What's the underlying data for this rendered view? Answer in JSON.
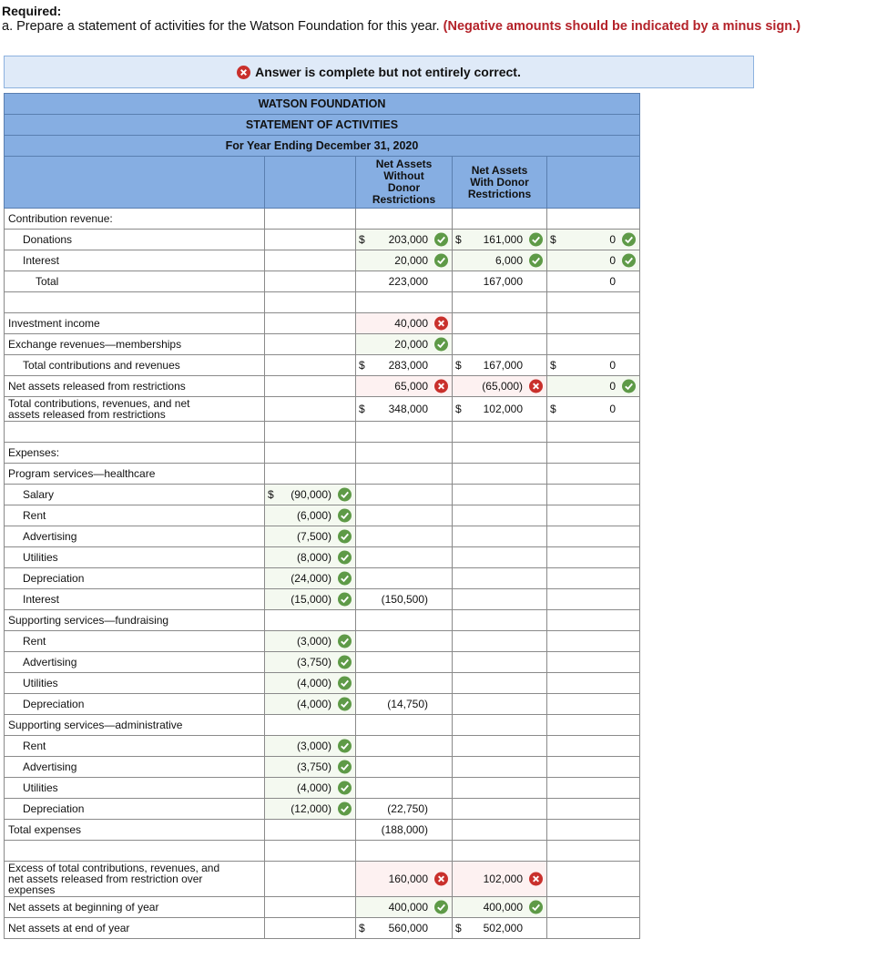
{
  "required": "Required:",
  "instruction": {
    "text": "a. Prepare a statement of activities for the Watson Foundation for this year.",
    "note": "(Negative amounts should be indicated by a minus sign.)"
  },
  "banner": "Answer is complete but not entirely correct.",
  "table": {
    "title": [
      "WATSON FOUNDATION",
      "STATEMENT OF ACTIVITIES",
      "For Year Ending December 31, 2020"
    ],
    "columns": [
      null,
      "Net Assets Without Donor Restrictions",
      "Net Assets With Donor Restrictions",
      null
    ],
    "rows": [
      {
        "label": "Contribution revenue:",
        "indent": 0,
        "cells": [
          null,
          null,
          null,
          null
        ]
      },
      {
        "label": "Donations",
        "indent": 1,
        "cells": [
          null,
          {
            "dollar": "$",
            "value": "203,000",
            "mark": "check"
          },
          {
            "dollar": "$",
            "value": "161,000",
            "mark": "check"
          },
          {
            "dollar": "$",
            "value": "0",
            "mark": "check"
          }
        ]
      },
      {
        "label": "Interest",
        "indent": 1,
        "cells": [
          null,
          {
            "value": "20,000",
            "mark": "check"
          },
          {
            "value": "6,000",
            "mark": "check"
          },
          {
            "value": "0",
            "mark": "check"
          }
        ]
      },
      {
        "label": "Total",
        "indent": 2,
        "cells": [
          null,
          {
            "value": "223,000"
          },
          {
            "value": "167,000"
          },
          {
            "value": "0"
          }
        ]
      },
      {
        "blank": true
      },
      {
        "label": "Investment income",
        "indent": 0,
        "cells": [
          null,
          {
            "value": "40,000",
            "mark": "cross"
          },
          null,
          null
        ]
      },
      {
        "label": "Exchange revenues—memberships",
        "indent": 0,
        "cells": [
          null,
          {
            "value": "20,000",
            "mark": "check"
          },
          null,
          null
        ]
      },
      {
        "label": "Total contributions and revenues",
        "indent": 1,
        "cells": [
          null,
          {
            "dollar": "$",
            "value": "283,000"
          },
          {
            "dollar": "$",
            "value": "167,000"
          },
          {
            "dollar": "$",
            "value": "0"
          }
        ]
      },
      {
        "label": "Net assets released from restrictions",
        "indent": 0,
        "cells": [
          null,
          {
            "value": "65,000",
            "mark": "cross"
          },
          {
            "value": "(65,000)",
            "mark": "cross"
          },
          {
            "value": "0",
            "mark": "check"
          }
        ]
      },
      {
        "label": "Total contributions, revenues, and net assets released from restrictions",
        "indent": 0,
        "cells": [
          null,
          {
            "dollar": "$",
            "value": "348,000"
          },
          {
            "dollar": "$",
            "value": "102,000"
          },
          {
            "dollar": "$",
            "value": "0"
          }
        ]
      },
      {
        "blank": true
      },
      {
        "label": "Expenses:",
        "indent": 0,
        "cells": [
          null,
          null,
          null,
          null
        ]
      },
      {
        "label": "Program services—healthcare",
        "indent": 0,
        "cells": [
          null,
          null,
          null,
          null
        ]
      },
      {
        "label": "Salary",
        "indent": 1,
        "cells": [
          {
            "dollar": "$",
            "value": "(90,000)",
            "mark": "check"
          },
          null,
          null,
          null
        ]
      },
      {
        "label": "Rent",
        "indent": 1,
        "cells": [
          {
            "value": "(6,000)",
            "mark": "check"
          },
          null,
          null,
          null
        ]
      },
      {
        "label": "Advertising",
        "indent": 1,
        "cells": [
          {
            "value": "(7,500)",
            "mark": "check"
          },
          null,
          null,
          null
        ]
      },
      {
        "label": "Utilities",
        "indent": 1,
        "cells": [
          {
            "value": "(8,000)",
            "mark": "check"
          },
          null,
          null,
          null
        ]
      },
      {
        "label": "Depreciation",
        "indent": 1,
        "cells": [
          {
            "value": "(24,000)",
            "mark": "check"
          },
          null,
          null,
          null
        ]
      },
      {
        "label": "Interest",
        "indent": 1,
        "cells": [
          {
            "value": "(15,000)",
            "mark": "check"
          },
          {
            "value": "(150,500)"
          },
          null,
          null
        ]
      },
      {
        "label": "Supporting services—fundraising",
        "indent": 0,
        "cells": [
          null,
          null,
          null,
          null
        ]
      },
      {
        "label": "Rent",
        "indent": 1,
        "cells": [
          {
            "value": "(3,000)",
            "mark": "check"
          },
          null,
          null,
          null
        ]
      },
      {
        "label": "Advertising",
        "indent": 1,
        "cells": [
          {
            "value": "(3,750)",
            "mark": "check"
          },
          null,
          null,
          null
        ]
      },
      {
        "label": "Utilities",
        "indent": 1,
        "cells": [
          {
            "value": "(4,000)",
            "mark": "check"
          },
          null,
          null,
          null
        ]
      },
      {
        "label": "Depreciation",
        "indent": 1,
        "cells": [
          {
            "value": "(4,000)",
            "mark": "check"
          },
          {
            "value": "(14,750)"
          },
          null,
          null
        ]
      },
      {
        "label": "Supporting services—administrative",
        "indent": 0,
        "cells": [
          null,
          null,
          null,
          null
        ]
      },
      {
        "label": "Rent",
        "indent": 1,
        "cells": [
          {
            "value": "(3,000)",
            "mark": "check"
          },
          null,
          null,
          null
        ]
      },
      {
        "label": "Advertising",
        "indent": 1,
        "cells": [
          {
            "value": "(3,750)",
            "mark": "check"
          },
          null,
          null,
          null
        ]
      },
      {
        "label": "Utilities",
        "indent": 1,
        "cells": [
          {
            "value": "(4,000)",
            "mark": "check"
          },
          null,
          null,
          null
        ]
      },
      {
        "label": "Depreciation",
        "indent": 1,
        "cells": [
          {
            "value": "(12,000)",
            "mark": "check"
          },
          {
            "value": "(22,750)"
          },
          null,
          null
        ]
      },
      {
        "label": "Total expenses",
        "indent": 0,
        "cells": [
          null,
          {
            "value": "(188,000)"
          },
          null,
          null
        ]
      },
      {
        "blank": true
      },
      {
        "label": "Excess of total contributions, revenues, and net assets released from restriction over expenses",
        "indent": 0,
        "cells": [
          null,
          {
            "value": "160,000",
            "mark": "cross"
          },
          {
            "value": "102,000",
            "mark": "cross"
          },
          null
        ]
      },
      {
        "label": "Net assets at beginning of year",
        "indent": 0,
        "cells": [
          null,
          {
            "value": "400,000",
            "mark": "check"
          },
          {
            "value": "400,000",
            "mark": "check"
          },
          null
        ]
      },
      {
        "label": "Net assets at end of year",
        "indent": 0,
        "cells": [
          null,
          {
            "dollar": "$",
            "value": "560,000"
          },
          {
            "dollar": "$",
            "value": "502,000"
          },
          null
        ]
      }
    ]
  }
}
